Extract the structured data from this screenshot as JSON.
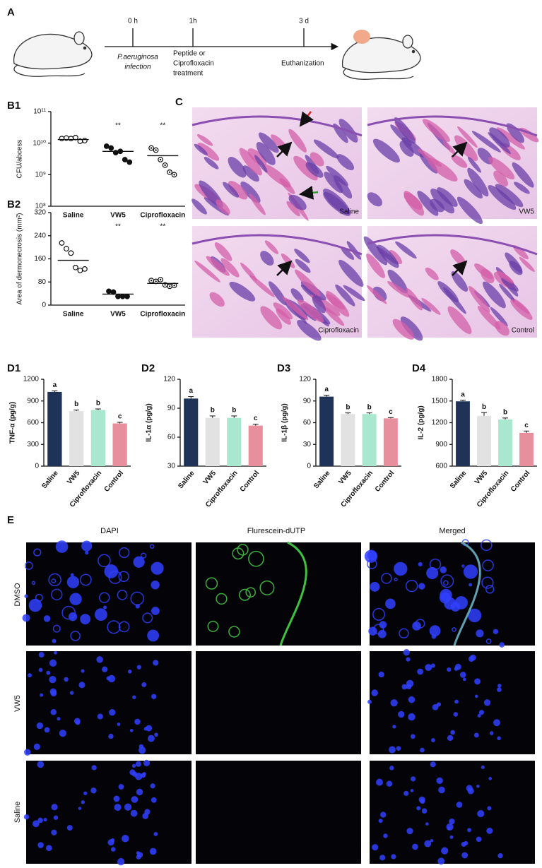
{
  "timeline": {
    "panel": "A",
    "times": [
      "0 h",
      "1h",
      "3 d"
    ],
    "events": [
      [
        "P.aeruginosa",
        "infection"
      ],
      [
        "Peptide or",
        "Ciprofloxacin",
        "treatment"
      ],
      [
        "Euthanization"
      ]
    ]
  },
  "histology": {
    "panel": "C",
    "labels": [
      "Saline",
      "VW5",
      "Ciprofloxacin",
      "Control"
    ]
  },
  "fluorescence": {
    "panel": "E",
    "columns": [
      "DAPI",
      "Flurescein-dUTP",
      "Merged"
    ],
    "rows": [
      "DMSO",
      "VW5",
      "Saline"
    ]
  },
  "chart_data": [
    {
      "type": "dot",
      "label": "B1",
      "y_label": "CFU/abcess",
      "categories": [
        "Saline",
        "VW5",
        "Ciprofloxacin"
      ],
      "points": [
        [
          14000000000,
          14500000000,
          14000000000,
          15000000000,
          11500000000,
          12000000000
        ],
        [
          8000000000,
          7000000000,
          5000000000,
          5500000000,
          3000000000,
          2500000000
        ],
        [
          7000000000,
          6000000000,
          3000000000,
          2000000000,
          1200000000,
          1000000000
        ]
      ],
      "means": [
        13000000000,
        5500000000,
        4000000000
      ],
      "markers": [
        "open",
        "filled",
        "dotted"
      ],
      "significance": [
        null,
        "**",
        "**"
      ],
      "log_scale": true,
      "ylim": [
        100000000,
        100000000000
      ],
      "yticks": [
        {
          "value": 100000000,
          "label": "10⁸"
        },
        {
          "value": 1000000000,
          "label": "10⁹"
        },
        {
          "value": 10000000000,
          "label": "10¹⁰"
        },
        {
          "value": 100000000000,
          "label": "10¹¹"
        }
      ]
    },
    {
      "type": "dot",
      "label": "B2",
      "y_label": "Area of dermonecrosis (mm²)",
      "categories": [
        "Saline",
        "VW5",
        "Ciprofloxacin"
      ],
      "points": [
        [
          215,
          195,
          180,
          130,
          120,
          125
        ],
        [
          48,
          45,
          30,
          30,
          30
        ],
        [
          85,
          82,
          88,
          70,
          65,
          68
        ]
      ],
      "means": [
        155,
        38,
        75
      ],
      "markers": [
        "open",
        "filled",
        "dotted"
      ],
      "significance": [
        null,
        "**",
        "**"
      ],
      "log_scale": false,
      "ylim": [
        0,
        320
      ],
      "yticks": [
        0,
        80,
        160,
        240,
        320
      ]
    },
    {
      "type": "bar",
      "label": "D1",
      "y_label": "TNF-α (pg/g)",
      "categories": [
        "Saline",
        "VW5",
        "Ciprofloxacin",
        "Control"
      ],
      "values": [
        1025,
        760,
        775,
        590
      ],
      "errors": [
        15,
        15,
        15,
        15
      ],
      "letters": [
        "a",
        "b",
        "b",
        "c"
      ],
      "colors": [
        "#1f3257",
        "#e2e2e2",
        "#a9e8cf",
        "#e88f9d"
      ],
      "ylim": [
        0,
        1200
      ],
      "yticks": [
        0,
        300,
        600,
        900,
        1200
      ]
    },
    {
      "type": "bar",
      "label": "D2",
      "y_label": "IL-1α (pg/g)",
      "categories": [
        "Saline",
        "VW5",
        "Ciprofloxacin",
        "Control"
      ],
      "values": [
        100,
        80,
        80,
        72
      ],
      "errors": [
        2,
        2,
        2,
        1.5
      ],
      "letters": [
        "a",
        "b",
        "b",
        "c"
      ],
      "colors": [
        "#1f3257",
        "#e2e2e2",
        "#a9e8cf",
        "#e88f9d"
      ],
      "ylim": [
        30,
        120
      ],
      "yticks": [
        30,
        60,
        90,
        120
      ]
    },
    {
      "type": "bar",
      "label": "D3",
      "y_label": "IL-1β (pg/g)",
      "categories": [
        "Saline",
        "VW5",
        "Ciprofloxacin",
        "Control"
      ],
      "values": [
        96,
        72,
        72,
        66
      ],
      "errors": [
        2,
        1.5,
        1.5,
        1
      ],
      "letters": [
        "a",
        "b",
        "b",
        "c"
      ],
      "colors": [
        "#1f3257",
        "#e2e2e2",
        "#a9e8cf",
        "#e88f9d"
      ],
      "ylim": [
        0,
        120
      ],
      "yticks": [
        0,
        30,
        60,
        90,
        120
      ]
    },
    {
      "type": "bar",
      "label": "D4",
      "y_label": "IL-2 (pg/g)",
      "categories": [
        "Saline",
        "VW5",
        "Ciprofloxacin",
        "Control"
      ],
      "values": [
        1495,
        1295,
        1245,
        1060
      ],
      "errors": [
        15,
        45,
        20,
        25
      ],
      "letters": [
        "a",
        "b",
        "b",
        "c"
      ],
      "colors": [
        "#1f3257",
        "#e2e2e2",
        "#a9e8cf",
        "#e88f9d"
      ],
      "ylim": [
        600,
        1800
      ],
      "yticks": [
        600,
        900,
        1200,
        1500,
        1800
      ]
    }
  ]
}
